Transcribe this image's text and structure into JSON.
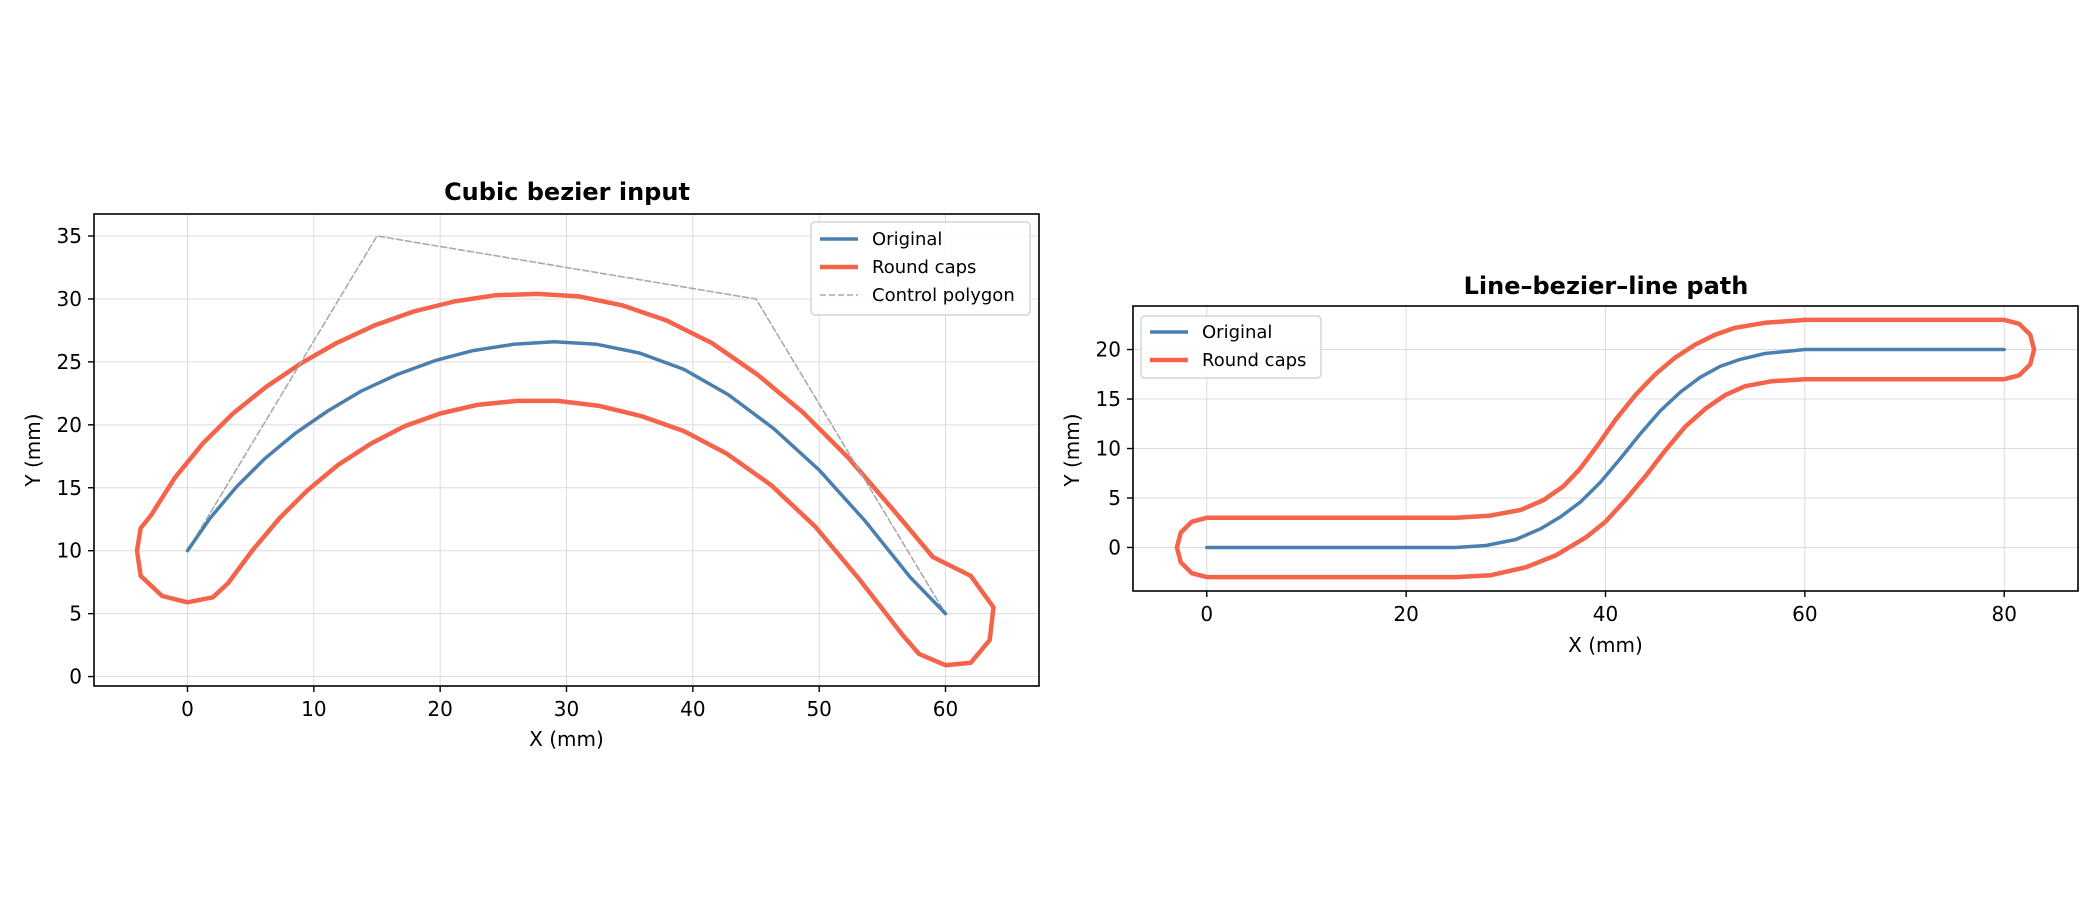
{
  "chart_data": [
    {
      "type": "line",
      "title": "Cubic bezier input",
      "xlabel": "X (mm)",
      "ylabel": "Y (mm)",
      "xlim": [
        -7.4,
        67.4
      ],
      "ylim": [
        -0.75,
        36.75
      ],
      "xticks": [
        0,
        10,
        20,
        30,
        40,
        50,
        60
      ],
      "yticks": [
        0,
        5,
        10,
        15,
        20,
        25,
        30,
        35
      ],
      "grid": true,
      "legend_position": "top-right",
      "series": [
        {
          "name": "Original",
          "color": "#4a7fb0",
          "style": "solid",
          "points": [
            [
              0,
              10
            ],
            [
              1.8,
              12.6
            ],
            [
              3.9,
              15.1
            ],
            [
              6.1,
              17.3
            ],
            [
              8.5,
              19.3
            ],
            [
              11.1,
              21.1
            ],
            [
              13.8,
              22.7
            ],
            [
              16.6,
              24.0
            ],
            [
              19.6,
              25.1
            ],
            [
              22.6,
              25.9
            ],
            [
              25.8,
              26.4
            ],
            [
              29.0,
              26.6
            ],
            [
              32.4,
              26.4
            ],
            [
              35.8,
              25.7
            ],
            [
              39.3,
              24.4
            ],
            [
              42.8,
              22.4
            ],
            [
              46.4,
              19.7
            ],
            [
              50.0,
              16.4
            ],
            [
              53.6,
              12.4
            ],
            [
              57.2,
              7.9
            ],
            [
              60,
              5
            ]
          ]
        },
        {
          "name": "Round caps",
          "color": "#f4634a",
          "style": "solid",
          "closed": true,
          "points": [
            [
              -2.9,
              12.8
            ],
            [
              -1.0,
              15.8
            ],
            [
              1.2,
              18.5
            ],
            [
              3.6,
              20.9
            ],
            [
              6.2,
              23.0
            ],
            [
              9.0,
              24.9
            ],
            [
              11.8,
              26.5
            ],
            [
              14.8,
              27.9
            ],
            [
              17.9,
              29.0
            ],
            [
              21.1,
              29.8
            ],
            [
              24.4,
              30.3
            ],
            [
              27.7,
              30.4
            ],
            [
              31.0,
              30.2
            ],
            [
              34.4,
              29.5
            ],
            [
              37.9,
              28.3
            ],
            [
              41.5,
              26.5
            ],
            [
              45.1,
              24.0
            ],
            [
              48.7,
              21.0
            ],
            [
              52.3,
              17.4
            ],
            [
              55.9,
              13.2
            ],
            [
              59.0,
              9.5
            ],
            [
              62.0,
              8.0
            ],
            [
              63.8,
              5.5
            ],
            [
              63.5,
              2.9
            ],
            [
              62.0,
              1.1
            ],
            [
              60.0,
              0.9
            ],
            [
              57.9,
              1.8
            ],
            [
              56.6,
              3.3
            ],
            [
              53.2,
              7.7
            ],
            [
              49.7,
              11.9
            ],
            [
              46.2,
              15.2
            ],
            [
              42.7,
              17.7
            ],
            [
              39.3,
              19.5
            ],
            [
              35.9,
              20.7
            ],
            [
              32.6,
              21.5
            ],
            [
              29.3,
              21.9
            ],
            [
              26.1,
              21.9
            ],
            [
              23.0,
              21.6
            ],
            [
              20.0,
              20.9
            ],
            [
              17.2,
              19.9
            ],
            [
              14.5,
              18.5
            ],
            [
              11.9,
              16.8
            ],
            [
              9.5,
              14.8
            ],
            [
              7.3,
              12.6
            ],
            [
              5.2,
              10.1
            ],
            [
              3.2,
              7.4
            ],
            [
              2.0,
              6.3
            ],
            [
              0,
              5.9
            ],
            [
              -2.0,
              6.4
            ],
            [
              -3.7,
              8.0
            ],
            [
              -4.0,
              10.0
            ],
            [
              -3.7,
              11.8
            ]
          ]
        },
        {
          "name": "Control polygon",
          "color": "#aaaaaa",
          "style": "dashed",
          "points": [
            [
              0,
              10
            ],
            [
              15,
              35
            ],
            [
              45,
              30
            ],
            [
              60,
              5
            ]
          ]
        }
      ]
    },
    {
      "type": "line",
      "title": "Line–bezier–line path",
      "xlabel": "X (mm)",
      "ylabel": "Y (mm)",
      "xlim": [
        -7.4,
        87.4
      ],
      "ylim": [
        -4.4,
        24.4
      ],
      "xticks": [
        0,
        20,
        40,
        60,
        80
      ],
      "yticks": [
        0,
        5,
        10,
        15,
        20
      ],
      "grid": true,
      "legend_position": "top-left",
      "series": [
        {
          "name": "Original",
          "color": "#4a7fb0",
          "style": "solid",
          "points": [
            [
              0,
              0
            ],
            [
              25,
              0
            ],
            [
              28,
              0.2
            ],
            [
              31,
              0.8
            ],
            [
              33.5,
              1.9
            ],
            [
              35.5,
              3.1
            ],
            [
              37.5,
              4.6
            ],
            [
              39.5,
              6.6
            ],
            [
              41.5,
              9.0
            ],
            [
              43.5,
              11.5
            ],
            [
              45.5,
              13.8
            ],
            [
              47.5,
              15.7
            ],
            [
              49.5,
              17.2
            ],
            [
              51.5,
              18.3
            ],
            [
              53.5,
              19.0
            ],
            [
              56,
              19.6
            ],
            [
              60,
              20
            ],
            [
              80,
              20
            ]
          ]
        },
        {
          "name": "Round caps",
          "color": "#f4634a",
          "style": "solid",
          "closed": true,
          "points": [
            [
              0,
              3
            ],
            [
              25,
              3
            ],
            [
              28.3,
              3.2
            ],
            [
              31.5,
              3.8
            ],
            [
              33.8,
              4.8
            ],
            [
              35.8,
              6.2
            ],
            [
              37.4,
              7.9
            ],
            [
              39.2,
              10.3
            ],
            [
              41.0,
              12.9
            ],
            [
              43.0,
              15.4
            ],
            [
              45.0,
              17.5
            ],
            [
              47.0,
              19.2
            ],
            [
              49.0,
              20.5
            ],
            [
              51.0,
              21.5
            ],
            [
              53.0,
              22.2
            ],
            [
              56.0,
              22.7
            ],
            [
              60,
              23
            ],
            [
              80,
              23
            ],
            [
              81.5,
              22.6
            ],
            [
              82.6,
              21.5
            ],
            [
              83,
              20
            ],
            [
              82.6,
              18.5
            ],
            [
              81.5,
              17.4
            ],
            [
              80,
              17
            ],
            [
              60,
              17
            ],
            [
              56.7,
              16.8
            ],
            [
              54.0,
              16.3
            ],
            [
              52.0,
              15.4
            ],
            [
              50.0,
              14.0
            ],
            [
              48.0,
              12.2
            ],
            [
              46.0,
              9.8
            ],
            [
              44.0,
              7.2
            ],
            [
              42.0,
              4.8
            ],
            [
              40.0,
              2.6
            ],
            [
              38.0,
              1.0
            ],
            [
              35.0,
              -0.8
            ],
            [
              32.0,
              -2.0
            ],
            [
              28.5,
              -2.8
            ],
            [
              25,
              -3
            ],
            [
              0,
              -3
            ],
            [
              -1.5,
              -2.6
            ],
            [
              -2.6,
              -1.5
            ],
            [
              -3,
              0
            ],
            [
              -2.6,
              1.5
            ],
            [
              -1.5,
              2.6
            ]
          ]
        }
      ]
    }
  ]
}
